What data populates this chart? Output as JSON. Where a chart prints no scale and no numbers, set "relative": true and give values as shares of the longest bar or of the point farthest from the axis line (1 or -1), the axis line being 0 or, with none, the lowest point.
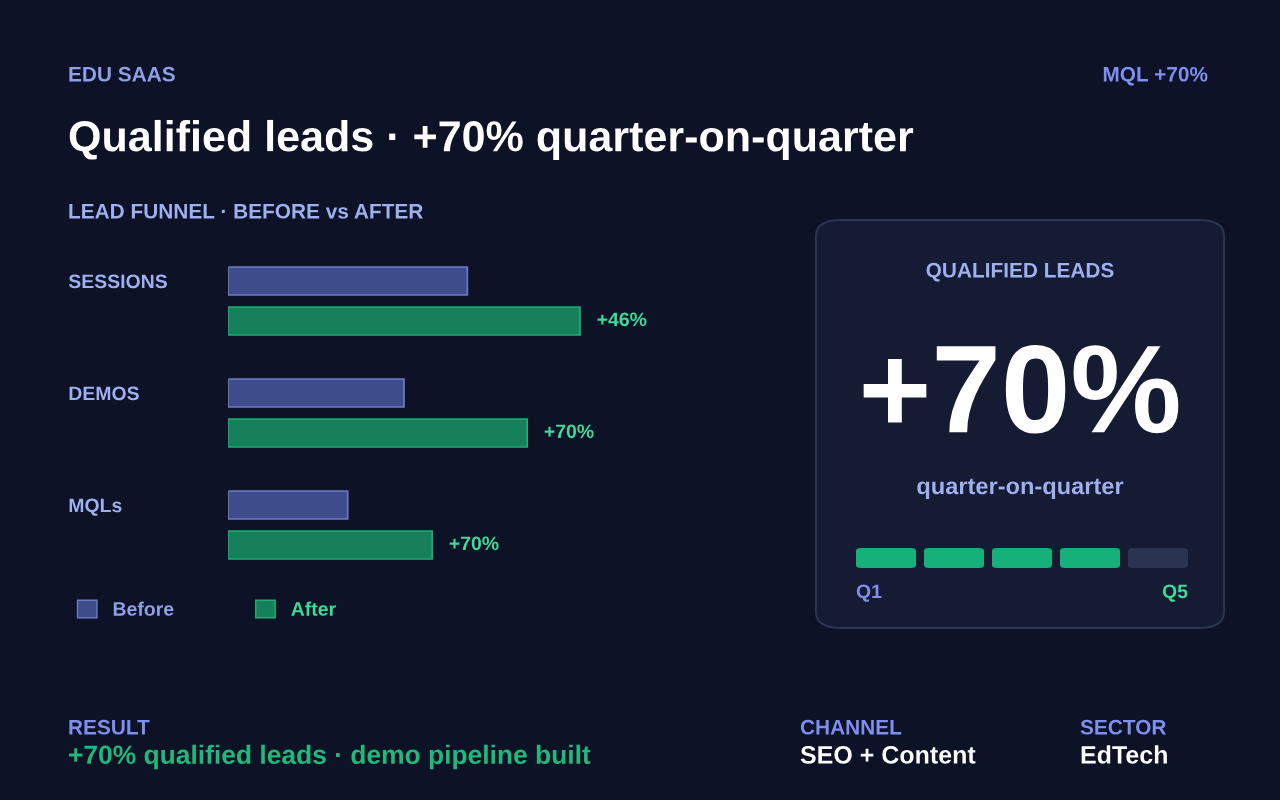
{
  "chart_data": [
    {
      "type": "bar",
      "orientation": "horizontal",
      "relative": true,
      "title": "Qualified leads · +70% quarter-on-quarter",
      "subtitle": "LEAD FUNNEL · BEFORE vs AFTER",
      "categories": [
        "SESSIONS",
        "DEMOS",
        "MQLs"
      ],
      "series": [
        {
          "name": "Before",
          "color": "#3f4c8c",
          "values": [
            0.68,
            0.5,
            0.34
          ]
        },
        {
          "name": "After",
          "color": "#15805a",
          "values": [
            1,
            0.85,
            0.58
          ]
        }
      ],
      "legend": "bottom left",
      "grid": false,
      "annotations": [
        "EDU SAAS",
        "MQL +70%",
        "RESULT",
        "+70% qualified leads · demo pipeline built",
        "CHANNEL",
        "SEO + Content",
        "SECTOR",
        "EdTech",
        {
          "text": "+46%",
          "x": 1,
          "y": "SESSIONS"
        },
        {
          "text": "+70%",
          "x": 0.85,
          "y": "DEMOS"
        },
        {
          "text": "+70%",
          "x": 0.58,
          "y": "MQLs"
        }
      ]
    },
    {
      "type": "other",
      "title": "QUALIFIED LEADS",
      "annotations": [
        "+70%",
        "quarter-on-quarter",
        "Q1",
        "Q5"
      ]
    }
  ]
}
